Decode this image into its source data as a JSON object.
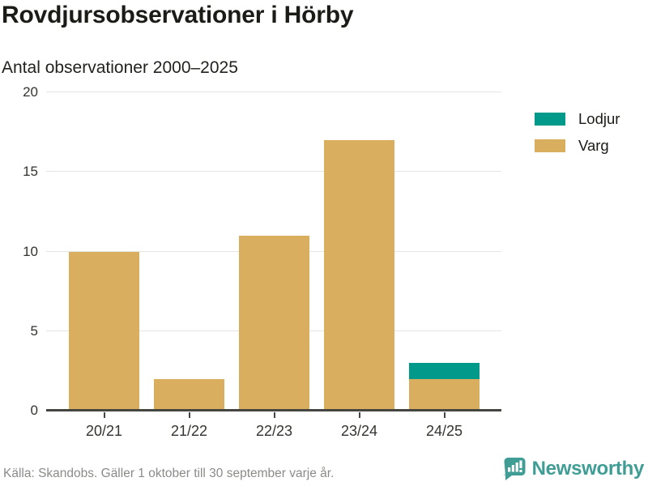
{
  "header": {
    "title": "Rovdjursobservationer i Hörby",
    "subtitle": "Antal observationer 2000–2025"
  },
  "chart_data": {
    "type": "bar",
    "stacked": true,
    "title": "Rovdjursobservationer i Hörby",
    "subtitle": "Antal observationer 2000–2025",
    "categories": [
      "20/21",
      "21/22",
      "22/23",
      "23/24",
      "24/25"
    ],
    "series": [
      {
        "name": "Lodjur",
        "color": "#00998a",
        "values": [
          0,
          0,
          0,
          0,
          1
        ]
      },
      {
        "name": "Varg",
        "color": "#d9ae5e",
        "values": [
          10,
          2,
          11,
          17,
          2
        ]
      }
    ],
    "totals": [
      10,
      2,
      11,
      17,
      3
    ],
    "xlabel": "",
    "ylabel": "",
    "ylim": [
      0,
      20
    ],
    "yticks": [
      0,
      5,
      10,
      15,
      20
    ],
    "grid": true,
    "legend_position": "right"
  },
  "colors": {
    "lodjur": "#00998a",
    "varg": "#d9ae5e",
    "axis": "#454542",
    "gridline": "#e5e5e3",
    "brand_teal": "#3f9d95"
  },
  "footer": {
    "source": "Källa: Skandobs. Gäller 1 oktober till 30 september varje år.",
    "brand": "Newsworthy"
  }
}
